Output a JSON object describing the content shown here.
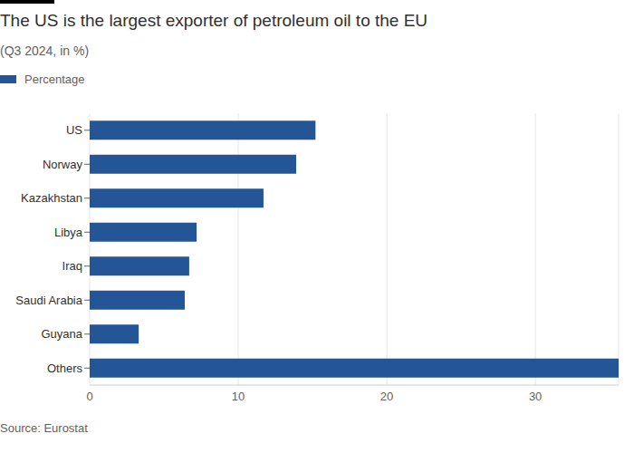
{
  "chart_data": {
    "type": "bar",
    "title": "The US is the largest exporter of petroleum oil to the EU",
    "subtitle": "(Q3 2024, in %)",
    "source": "Source: Eurostat",
    "orientation": "horizontal",
    "categories": [
      "US",
      "Norway",
      "Kazakhstan",
      "Libya",
      "Iraq",
      "Saudi Arabia",
      "Guyana",
      "Others"
    ],
    "series": [
      {
        "name": "Percentage",
        "color": "#245596",
        "values": [
          15.2,
          13.9,
          11.7,
          7.2,
          6.7,
          6.4,
          3.3,
          35.6
        ]
      }
    ],
    "xlim": [
      0,
      35.6
    ],
    "xticks": [
      0,
      10,
      20,
      30
    ],
    "grid": true,
    "legend": "top-left"
  }
}
